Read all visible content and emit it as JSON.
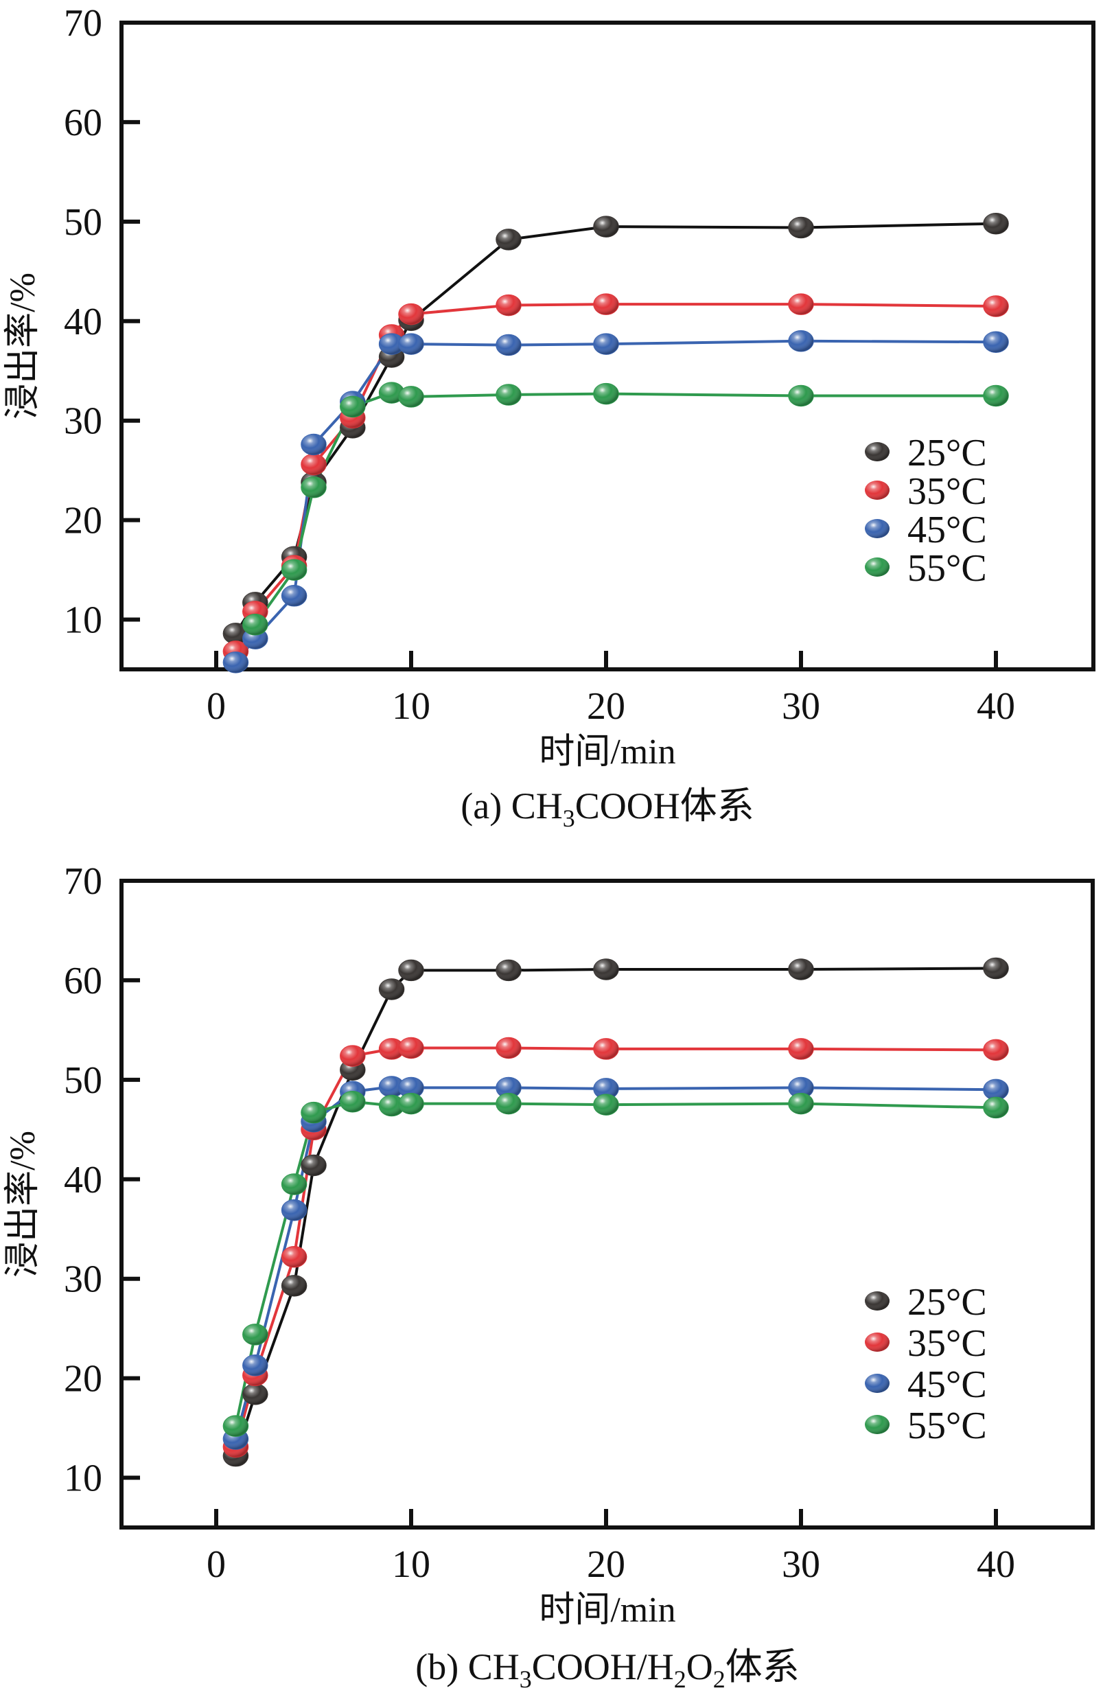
{
  "figure": {
    "y_axis_label": "浸出率/%",
    "x_axis_label": "时间/min"
  },
  "chart_data": [
    {
      "type": "line",
      "title": "(a) CH3COOH体系",
      "caption_parts": {
        "prefix": "(a) CH",
        "sub1": "3",
        "mid": "COOH体系"
      },
      "xlabel": "时间/min",
      "ylabel": "浸出率/%",
      "xlim": [
        -5,
        45
      ],
      "ylim": [
        5,
        70
      ],
      "xticks": [
        0,
        10,
        20,
        30,
        40
      ],
      "yticks": [
        10,
        20,
        30,
        40,
        50,
        60,
        70
      ],
      "grid": false,
      "legend_position": "right-middle",
      "x": [
        1,
        2,
        4,
        5,
        7,
        9,
        10,
        15,
        20,
        30,
        40
      ],
      "series": [
        {
          "name": "25°C",
          "color": "#3a3634",
          "values": [
            8.6,
            11.7,
            16.3,
            23.8,
            29.3,
            36.4,
            40.1,
            48.2,
            49.5,
            49.4,
            49.8
          ]
        },
        {
          "name": "35°C",
          "color": "#e2363b",
          "values": [
            6.8,
            10.8,
            15.4,
            25.6,
            30.3,
            38.6,
            40.7,
            41.6,
            41.7,
            41.7,
            41.5
          ]
        },
        {
          "name": "45°C",
          "color": "#3a64b0",
          "values": [
            5.7,
            8.1,
            12.4,
            27.6,
            31.9,
            37.7,
            37.7,
            37.6,
            37.7,
            38.0,
            37.9
          ]
        },
        {
          "name": "55°C",
          "color": "#2f9a4e",
          "values": [
            5.2,
            9.5,
            15.0,
            23.3,
            31.4,
            32.8,
            32.4,
            32.6,
            32.7,
            32.5,
            32.5
          ]
        }
      ]
    },
    {
      "type": "line",
      "title": "(b) CH3COOH/H2O2体系",
      "caption_parts": {
        "prefix": "(b) CH",
        "sub1": "3",
        "mid": "COOH/H",
        "sub2": "2",
        "mid2": "O",
        "sub3": "2",
        "suffix": "体系"
      },
      "xlabel": "时间/min",
      "ylabel": "浸出率/%",
      "xlim": [
        -5,
        45
      ],
      "ylim": [
        5,
        70
      ],
      "xticks": [
        0,
        10,
        20,
        30,
        40
      ],
      "yticks": [
        10,
        20,
        30,
        40,
        50,
        60,
        70
      ],
      "grid": false,
      "legend_position": "right-lower",
      "x": [
        1,
        2,
        4,
        5,
        7,
        9,
        10,
        15,
        20,
        30,
        40
      ],
      "series": [
        {
          "name": "25°C",
          "color": "#3a3634",
          "values": [
            12.2,
            18.4,
            29.3,
            41.4,
            51.0,
            59.1,
            61.0,
            61.0,
            61.1,
            61.1,
            61.2
          ]
        },
        {
          "name": "35°C",
          "color": "#e2363b",
          "values": [
            13.1,
            20.3,
            32.2,
            45.0,
            52.4,
            53.1,
            53.2,
            53.2,
            53.1,
            53.1,
            53.0
          ]
        },
        {
          "name": "45°C",
          "color": "#3a64b0",
          "values": [
            13.9,
            21.3,
            36.9,
            45.8,
            48.8,
            49.3,
            49.2,
            49.2,
            49.1,
            49.2,
            49.0
          ]
        },
        {
          "name": "55°C",
          "color": "#2f9a4e",
          "values": [
            15.2,
            24.4,
            39.5,
            46.7,
            47.8,
            47.4,
            47.6,
            47.6,
            47.5,
            47.6,
            47.2
          ]
        }
      ]
    }
  ]
}
